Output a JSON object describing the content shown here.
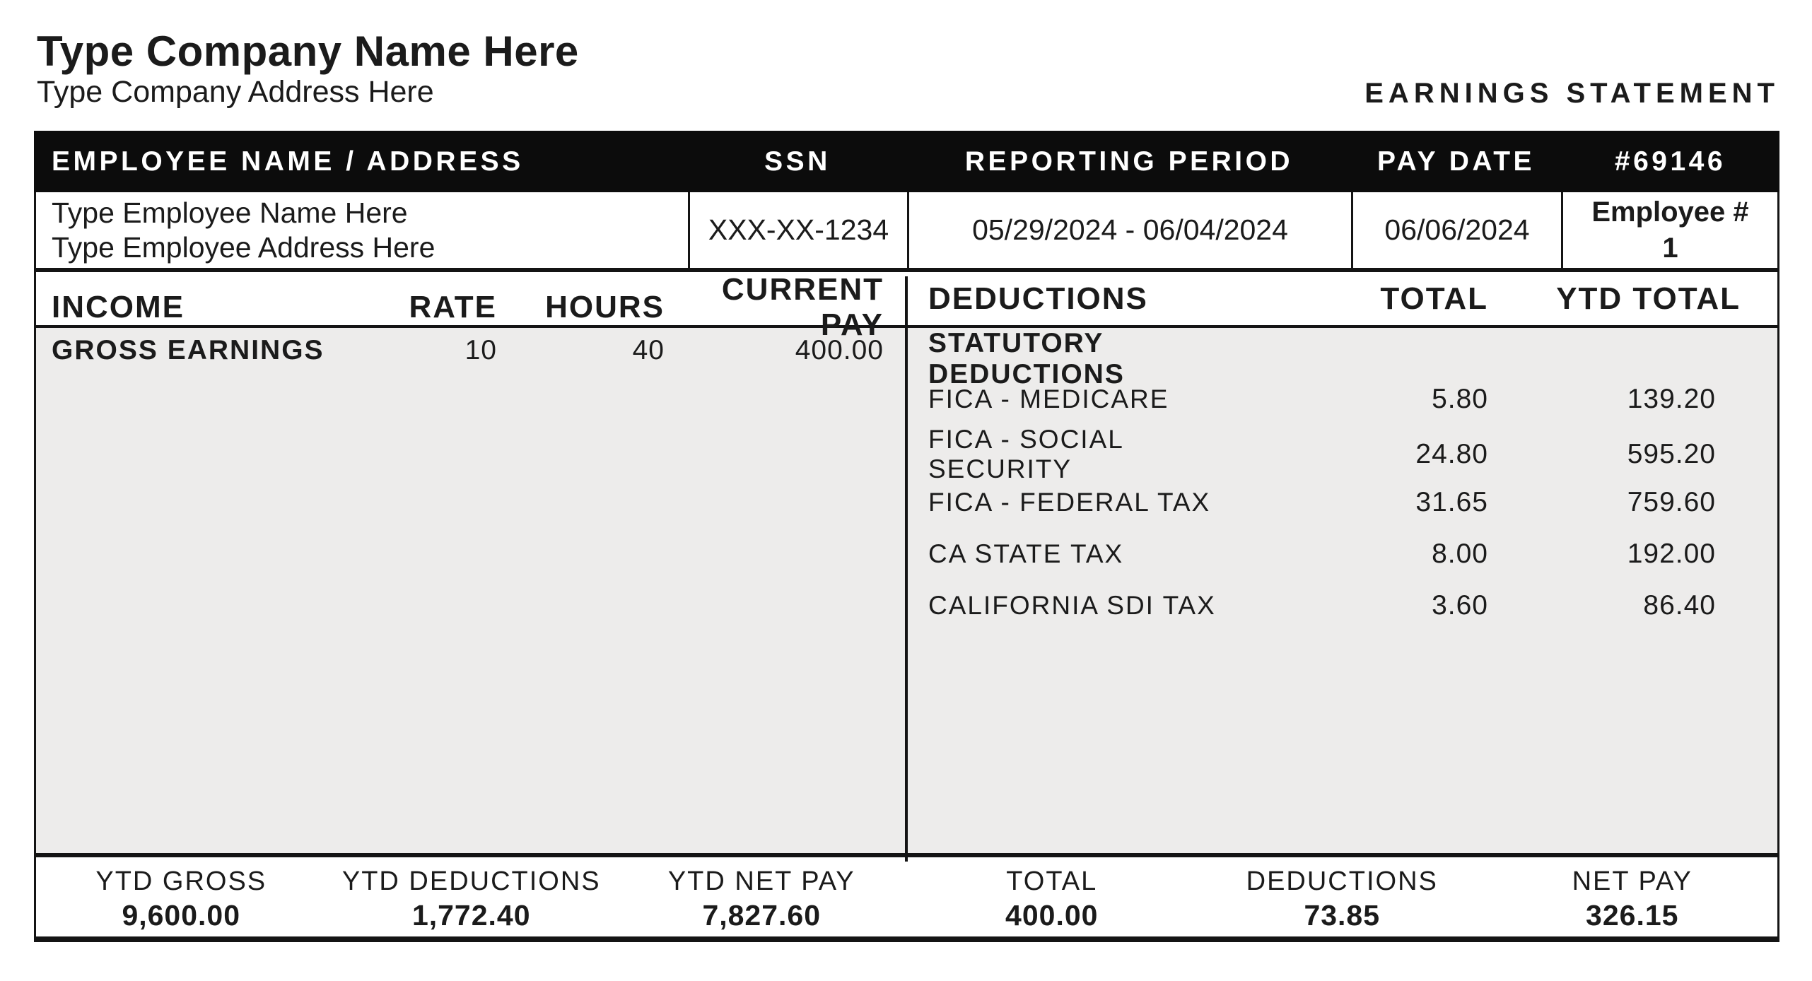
{
  "company": {
    "name": "Type Company Name Here",
    "address": "Type Company Address Here"
  },
  "statement_title": "EARNINGS STATEMENT",
  "header_bar": {
    "employee_col": "EMPLOYEE NAME / ADDRESS",
    "ssn_col": "SSN",
    "reporting_period_col": "REPORTING PERIOD",
    "pay_date_col": "PAY DATE",
    "statement_number": "#69146"
  },
  "employee_info": {
    "name": "Type Employee Name Here",
    "address": "Type Employee Address Here",
    "ssn": "XXX-XX-1234",
    "reporting_period": "05/29/2024 - 06/04/2024",
    "pay_date": "06/06/2024",
    "employee_number_label": "Employee #",
    "employee_number": "1"
  },
  "income": {
    "headers": {
      "income": "INCOME",
      "rate": "RATE",
      "hours": "HOURS",
      "current_pay": "CURRENT PAY"
    },
    "rows": [
      {
        "label": "GROSS EARNINGS",
        "rate": "10",
        "hours": "40",
        "current_pay": "400.00"
      }
    ]
  },
  "deductions": {
    "headers": {
      "deductions": "DEDUCTIONS",
      "total": "TOTAL",
      "ytd_total": "YTD TOTAL"
    },
    "section_label": "STATUTORY DEDUCTIONS",
    "rows": [
      {
        "label": "FICA - MEDICARE",
        "total": "5.80",
        "ytd_total": "139.20"
      },
      {
        "label": "FICA - SOCIAL SECURITY",
        "total": "24.80",
        "ytd_total": "595.20"
      },
      {
        "label": "FICA - FEDERAL TAX",
        "total": "31.65",
        "ytd_total": "759.60"
      },
      {
        "label": "CA STATE TAX",
        "total": "8.00",
        "ytd_total": "192.00"
      },
      {
        "label": "CALIFORNIA SDI TAX",
        "total": "3.60",
        "ytd_total": "86.40"
      }
    ]
  },
  "summary": {
    "items": [
      {
        "label": "YTD GROSS",
        "value": "9,600.00"
      },
      {
        "label": "YTD DEDUCTIONS",
        "value": "1,772.40"
      },
      {
        "label": "YTD NET PAY",
        "value": "7,827.60"
      },
      {
        "label": "TOTAL",
        "value": "400.00"
      },
      {
        "label": "DEDUCTIONS",
        "value": "73.85"
      },
      {
        "label": "NET PAY",
        "value": "326.15"
      }
    ]
  }
}
